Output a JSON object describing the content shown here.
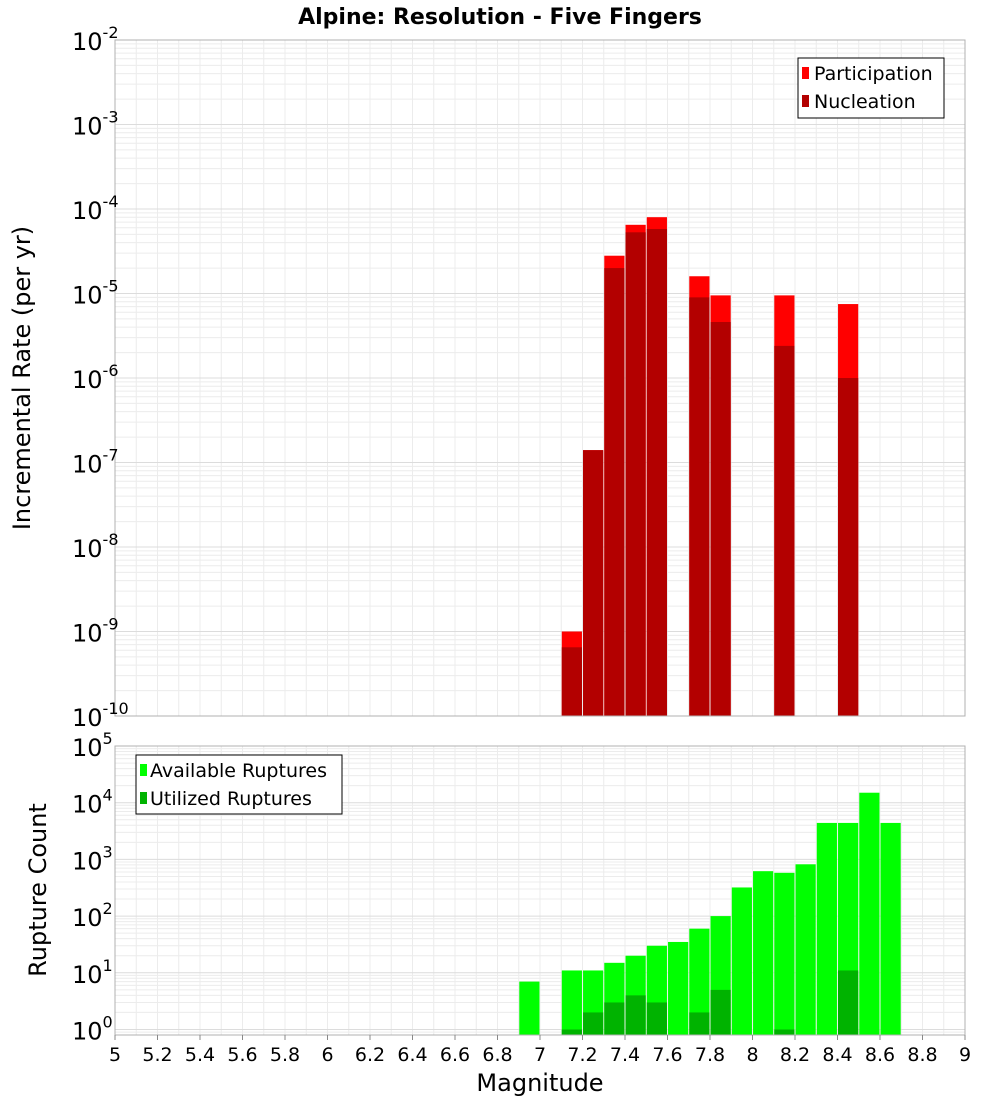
{
  "figure": {
    "title": "Alpine: Resolution - Five Fingers",
    "xlabel": "Magnitude",
    "x_ticks": [
      "5",
      "5.2",
      "5.4",
      "5.6",
      "5.8",
      "6",
      "6.2",
      "6.4",
      "6.6",
      "6.8",
      "7",
      "7.2",
      "7.4",
      "7.6",
      "7.8",
      "8",
      "8.2",
      "8.4",
      "8.6",
      "8.8",
      "9"
    ]
  },
  "chart_data": [
    {
      "type": "bar",
      "ylabel": "Incremental Rate (per yr)",
      "xlim": [
        5,
        9
      ],
      "ylim": [
        1e-10,
        0.01
      ],
      "yscale": "log",
      "grid": true,
      "legend_position": "top-right",
      "y_tick_exponents": [
        -10,
        -9,
        -8,
        -7,
        -6,
        -5,
        -4,
        -3,
        -2
      ],
      "series": [
        {
          "name": "Participation",
          "color": "#ff0000",
          "points": [
            {
              "x": 7.15,
              "y": 1e-09
            },
            {
              "x": 7.25,
              "y": 1.4e-07
            },
            {
              "x": 7.35,
              "y": 2.8e-05
            },
            {
              "x": 7.45,
              "y": 6.5e-05
            },
            {
              "x": 7.55,
              "y": 8e-05
            },
            {
              "x": 7.75,
              "y": 1.6e-05
            },
            {
              "x": 7.85,
              "y": 9.5e-06
            },
            {
              "x": 8.15,
              "y": 9.5e-06
            },
            {
              "x": 8.45,
              "y": 7.5e-06
            }
          ]
        },
        {
          "name": "Nucleation",
          "color": "#b30000",
          "points": [
            {
              "x": 7.15,
              "y": 6.5e-10
            },
            {
              "x": 7.25,
              "y": 1.4e-07
            },
            {
              "x": 7.35,
              "y": 2e-05
            },
            {
              "x": 7.45,
              "y": 5.3e-05
            },
            {
              "x": 7.55,
              "y": 5.8e-05
            },
            {
              "x": 7.75,
              "y": 9e-06
            },
            {
              "x": 7.85,
              "y": 4.6e-06
            },
            {
              "x": 8.15,
              "y": 2.4e-06
            },
            {
              "x": 8.45,
              "y": 1e-06
            }
          ]
        }
      ]
    },
    {
      "type": "bar",
      "ylabel": "Rupture Count",
      "xlim": [
        5,
        9
      ],
      "ylim": [
        0.8,
        100000.0
      ],
      "yscale": "log",
      "grid": true,
      "legend_position": "top-left",
      "y_tick_exponents": [
        0,
        1,
        2,
        3,
        4,
        5
      ],
      "series": [
        {
          "name": "Available Ruptures",
          "color": "#00ff00",
          "points": [
            {
              "x": 6.95,
              "y": 7
            },
            {
              "x": 7.15,
              "y": 11
            },
            {
              "x": 7.25,
              "y": 11
            },
            {
              "x": 7.35,
              "y": 15
            },
            {
              "x": 7.45,
              "y": 20
            },
            {
              "x": 7.55,
              "y": 30
            },
            {
              "x": 7.65,
              "y": 35
            },
            {
              "x": 7.75,
              "y": 60
            },
            {
              "x": 7.85,
              "y": 100
            },
            {
              "x": 7.95,
              "y": 320
            },
            {
              "x": 8.05,
              "y": 620
            },
            {
              "x": 8.15,
              "y": 580
            },
            {
              "x": 8.25,
              "y": 820
            },
            {
              "x": 8.35,
              "y": 4400
            },
            {
              "x": 8.45,
              "y": 4400
            },
            {
              "x": 8.55,
              "y": 15000
            },
            {
              "x": 8.65,
              "y": 4400
            }
          ]
        },
        {
          "name": "Utilized Ruptures",
          "color": "#00b300",
          "points": [
            {
              "x": 7.15,
              "y": 1
            },
            {
              "x": 7.25,
              "y": 2
            },
            {
              "x": 7.35,
              "y": 3
            },
            {
              "x": 7.45,
              "y": 4
            },
            {
              "x": 7.55,
              "y": 3
            },
            {
              "x": 7.75,
              "y": 2
            },
            {
              "x": 7.85,
              "y": 5
            },
            {
              "x": 8.15,
              "y": 1
            },
            {
              "x": 8.45,
              "y": 11
            }
          ]
        }
      ]
    }
  ]
}
